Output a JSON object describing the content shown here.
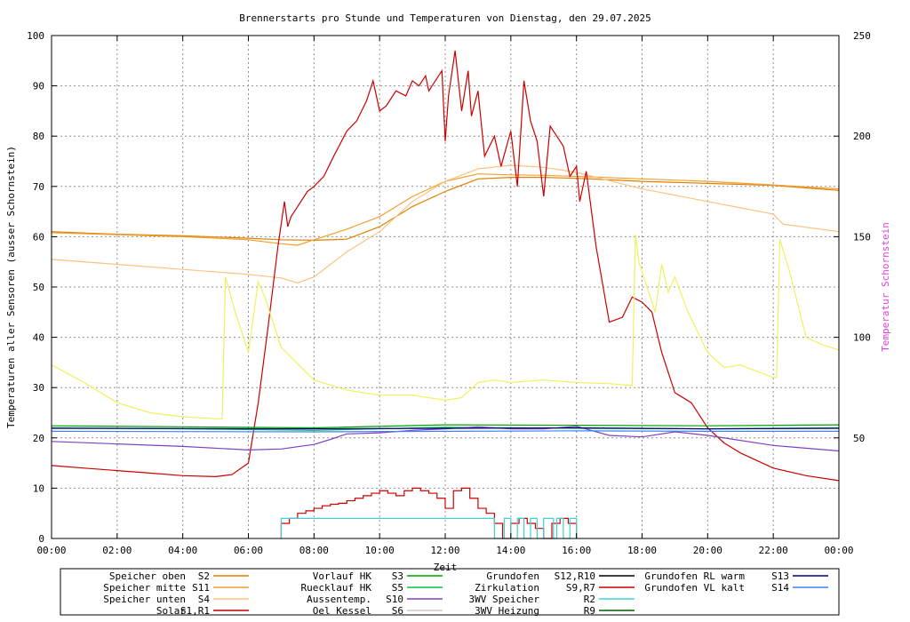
{
  "chart_data": {
    "type": "line",
    "title": "Brennerstarts pro Stunde und Temperaturen von Dienstag, den 29.07.2025",
    "xlabel": "Zeit",
    "ylabel": "Temperaturen aller Sensoren (ausser Schornstein)",
    "y2label": "Temperatur Schornstein",
    "xlim": [
      0,
      24
    ],
    "ylim": [
      0,
      100
    ],
    "y2lim": [
      0,
      250
    ],
    "x_ticks": [
      "00:00",
      "02:00",
      "04:00",
      "06:00",
      "08:00",
      "10:00",
      "12:00",
      "14:00",
      "16:00",
      "18:00",
      "20:00",
      "22:00",
      "00:00"
    ],
    "y_ticks": [
      "0",
      "10",
      "20",
      "30",
      "40",
      "50",
      "60",
      "70",
      "80",
      "90",
      "100"
    ],
    "y2_ticks": [
      "50",
      "100",
      "150",
      "200",
      "250"
    ],
    "grid": true,
    "legend_position": "bottom",
    "legend": [
      {
        "name": "Speicher oben",
        "code": "S2",
        "color": "#e08000"
      },
      {
        "name": "Speicher mitte",
        "code": "S11",
        "color": "#f0a030"
      },
      {
        "name": "Speicher unten",
        "code": "S4",
        "color": "#ffc080"
      },
      {
        "name": "Solar",
        "code": "S1,R1",
        "color": "#cc0000"
      },
      {
        "name": "Vorlauf HK",
        "code": "S3",
        "color": "#00a000"
      },
      {
        "name": "Ruecklauf HK",
        "code": "S5",
        "color": "#00c040"
      },
      {
        "name": "Aussentemp.",
        "code": "S10",
        "color": "#8040c0"
      },
      {
        "name": "Oel Kessel",
        "code": "S6",
        "color": "#c8c8c8"
      },
      {
        "name": "Grundofen",
        "code": "S12,R10",
        "color": "#000000"
      },
      {
        "name": "Zirkulation",
        "code": "S9,R7",
        "color": "#cc0000"
      },
      {
        "name": "3WV Speicher",
        "code": "R2",
        "color": "#40d0d0"
      },
      {
        "name": "3WV Heizung",
        "code": "R9",
        "color": "#006000"
      },
      {
        "name": "Grundofen RL warm",
        "code": "S13",
        "color": "#000080"
      },
      {
        "name": "Grundofen VL kalt",
        "code": "S14",
        "color": "#4080ff"
      }
    ],
    "series": [
      {
        "name": "Speicher oben S2",
        "color": "#e08000",
        "x": [
          0,
          2,
          4,
          6,
          7,
          8,
          9,
          10,
          11,
          12,
          13,
          14,
          15,
          16,
          17,
          18,
          20,
          22,
          24
        ],
        "y": [
          61,
          60.5,
          60.2,
          59.7,
          59.4,
          59.3,
          59.5,
          62,
          66,
          69,
          71.5,
          71.8,
          71.8,
          71.6,
          71.3,
          71,
          70.6,
          70.2,
          69.2
        ]
      },
      {
        "name": "Speicher mitte S11",
        "color": "#f0a030",
        "x": [
          0,
          2,
          4,
          6,
          7,
          7.5,
          8,
          9,
          10,
          11,
          12,
          13,
          14,
          15,
          16,
          18,
          20,
          22,
          24
        ],
        "y": [
          60.8,
          60.4,
          60,
          59.4,
          58.6,
          58.3,
          59.4,
          61.5,
          64,
          68,
          71,
          72.5,
          72.3,
          72.2,
          72,
          71.5,
          71,
          70.3,
          69.5
        ]
      },
      {
        "name": "Speicher unten S4",
        "color": "#ffc080",
        "x": [
          0,
          2,
          4,
          6,
          7,
          7.5,
          8,
          9,
          10,
          11,
          12,
          13,
          14,
          15,
          16,
          18,
          20,
          22,
          22.3,
          24
        ],
        "y": [
          55.5,
          54.5,
          53.5,
          52.5,
          51.8,
          50.8,
          52,
          57,
          61,
          67,
          71,
          73.5,
          74.2,
          73.8,
          72.8,
          69.5,
          67,
          64.5,
          62.5,
          61
        ]
      },
      {
        "name": "Solar S1,R1",
        "color": "#cc0000",
        "x": [
          0,
          1,
          2,
          3,
          4,
          5,
          5.5,
          6,
          6.3,
          6.6,
          6.9,
          7.1,
          7.2,
          7.3,
          7.5,
          7.8,
          8,
          8.3,
          8.6,
          9,
          9.3,
          9.6,
          9.8,
          9.9,
          10,
          10.2,
          10.5,
          10.8,
          11,
          11.2,
          11.4,
          11.5,
          11.7,
          11.9,
          12,
          12.1,
          12.3,
          12.5,
          12.7,
          12.8,
          13,
          13.2,
          13.5,
          13.7,
          14,
          14.2,
          14.4,
          14.6,
          14.8,
          15,
          15.2,
          15.4,
          15.6,
          15.8,
          16,
          16.1,
          16.3,
          16.6,
          17,
          17.4,
          17.7,
          18,
          18.3,
          18.6,
          19,
          19.5,
          20,
          20.5,
          21,
          22,
          23,
          24
        ],
        "y": [
          14.5,
          14,
          13.5,
          13,
          12.5,
          12.3,
          12.7,
          15,
          27,
          42,
          58,
          67,
          62,
          64,
          66,
          69,
          70,
          72,
          76,
          81,
          83,
          87,
          91,
          88,
          85,
          86,
          89,
          88,
          91,
          90,
          92,
          89,
          91,
          93,
          79,
          88,
          97,
          85,
          93,
          84,
          89,
          76,
          80,
          74,
          81,
          70,
          91,
          83,
          79,
          68,
          82,
          80,
          78,
          72,
          74,
          67,
          73,
          58,
          43,
          44,
          48,
          47,
          45,
          37,
          29,
          27,
          22,
          19,
          17,
          14,
          12.5,
          11.5
        ]
      },
      {
        "name": "Vorlauf HK S3",
        "color": "#00a000",
        "x": [
          0,
          4,
          8,
          12,
          16,
          20,
          24
        ],
        "y": [
          22.4,
          22.2,
          22,
          22.6,
          22.5,
          22.4,
          22.6
        ]
      },
      {
        "name": "Ruecklauf HK S5",
        "color": "#00c040",
        "x": [
          0,
          4,
          8,
          12,
          16,
          20,
          24
        ],
        "y": [
          22,
          21.8,
          21.5,
          22.1,
          21.9,
          21.8,
          22
        ]
      },
      {
        "name": "Aussentemp. S10",
        "color": "#8040c0",
        "x": [
          0,
          2,
          4,
          6,
          7,
          8,
          8.5,
          9,
          10,
          11,
          12,
          13,
          14,
          15,
          16,
          17,
          18,
          19,
          20,
          22,
          24
        ],
        "y": [
          19.3,
          18.8,
          18.3,
          17.6,
          17.8,
          18.7,
          19.7,
          20.8,
          21,
          21.5,
          21.8,
          22.2,
          21.8,
          21.8,
          22.3,
          20.5,
          20.2,
          21.2,
          20.5,
          18.5,
          17.4
        ]
      },
      {
        "name": "Oel Kessel S6",
        "color": "#f0f060",
        "x": [
          0,
          1,
          2,
          3,
          4,
          5,
          5.2,
          5.3,
          5.6,
          6,
          6.3,
          6.5,
          7,
          8,
          9,
          10,
          11,
          12,
          12.5,
          13,
          13.5,
          14,
          15,
          16,
          17,
          17.7,
          17.8,
          17.9,
          18.4,
          18.6,
          18.8,
          19,
          19.4,
          20,
          20.5,
          21,
          22,
          22.1,
          22.2,
          22.5,
          23,
          23.5,
          24
        ],
        "y": [
          34.5,
          31,
          27,
          25,
          24.2,
          23.8,
          23.8,
          52,
          45,
          37,
          51,
          48,
          38,
          31.5,
          29.5,
          28.5,
          28.5,
          27.5,
          28,
          31,
          31.5,
          31,
          31.5,
          31,
          30.8,
          30.4,
          60.5,
          55,
          45,
          54.5,
          49,
          52,
          45,
          37,
          34,
          34.5,
          32,
          32,
          59.5,
          53,
          40,
          38.5,
          37.5
        ]
      },
      {
        "name": "Grundofen RL warm S13",
        "color": "#000080",
        "x": [
          0,
          8,
          12,
          16,
          20,
          24
        ],
        "y": [
          21.9,
          21.8,
          21.9,
          22,
          21.8,
          21.9
        ]
      },
      {
        "name": "Grundofen VL kalt S14",
        "color": "#4080ff",
        "x": [
          0,
          8,
          12,
          16,
          20,
          24
        ],
        "y": [
          21.3,
          21.2,
          21.3,
          21.4,
          21.3,
          21.3
        ]
      },
      {
        "name": "Brennerstarts",
        "color": "#cc0000",
        "step": true,
        "x": [
          7,
          7.25,
          7.5,
          7.75,
          8,
          8.25,
          8.5,
          8.75,
          9,
          9.25,
          9.5,
          9.75,
          10,
          10.25,
          10.5,
          10.75,
          11,
          11.25,
          11.5,
          11.75,
          12,
          12.25,
          12.5,
          12.75,
          13,
          13.25,
          13.5,
          13.75,
          14,
          14.25,
          14.5,
          14.75,
          15,
          15.25,
          15.5,
          15.75,
          16
        ],
        "y": [
          3,
          4,
          5,
          5.5,
          6,
          6.5,
          6.8,
          7,
          7.5,
          8,
          8.5,
          9,
          9.5,
          9,
          8.5,
          9.5,
          10,
          9.5,
          9,
          8,
          6,
          9.5,
          10,
          8,
          6,
          5,
          3,
          0,
          3,
          4,
          3,
          2,
          0,
          3,
          4,
          3,
          0
        ]
      },
      {
        "name": "3WV Speicher R2",
        "color": "#40d0d0",
        "step": true,
        "x": [
          7,
          13.4,
          13.5,
          13.8,
          14,
          14.2,
          14.4,
          14.6,
          14.8,
          15,
          15.3,
          15.4,
          15.6,
          15.8,
          16
        ],
        "y": [
          4,
          4,
          0,
          4,
          0,
          4,
          0,
          4,
          0,
          4,
          0,
          4,
          0,
          4,
          0
        ]
      }
    ]
  }
}
